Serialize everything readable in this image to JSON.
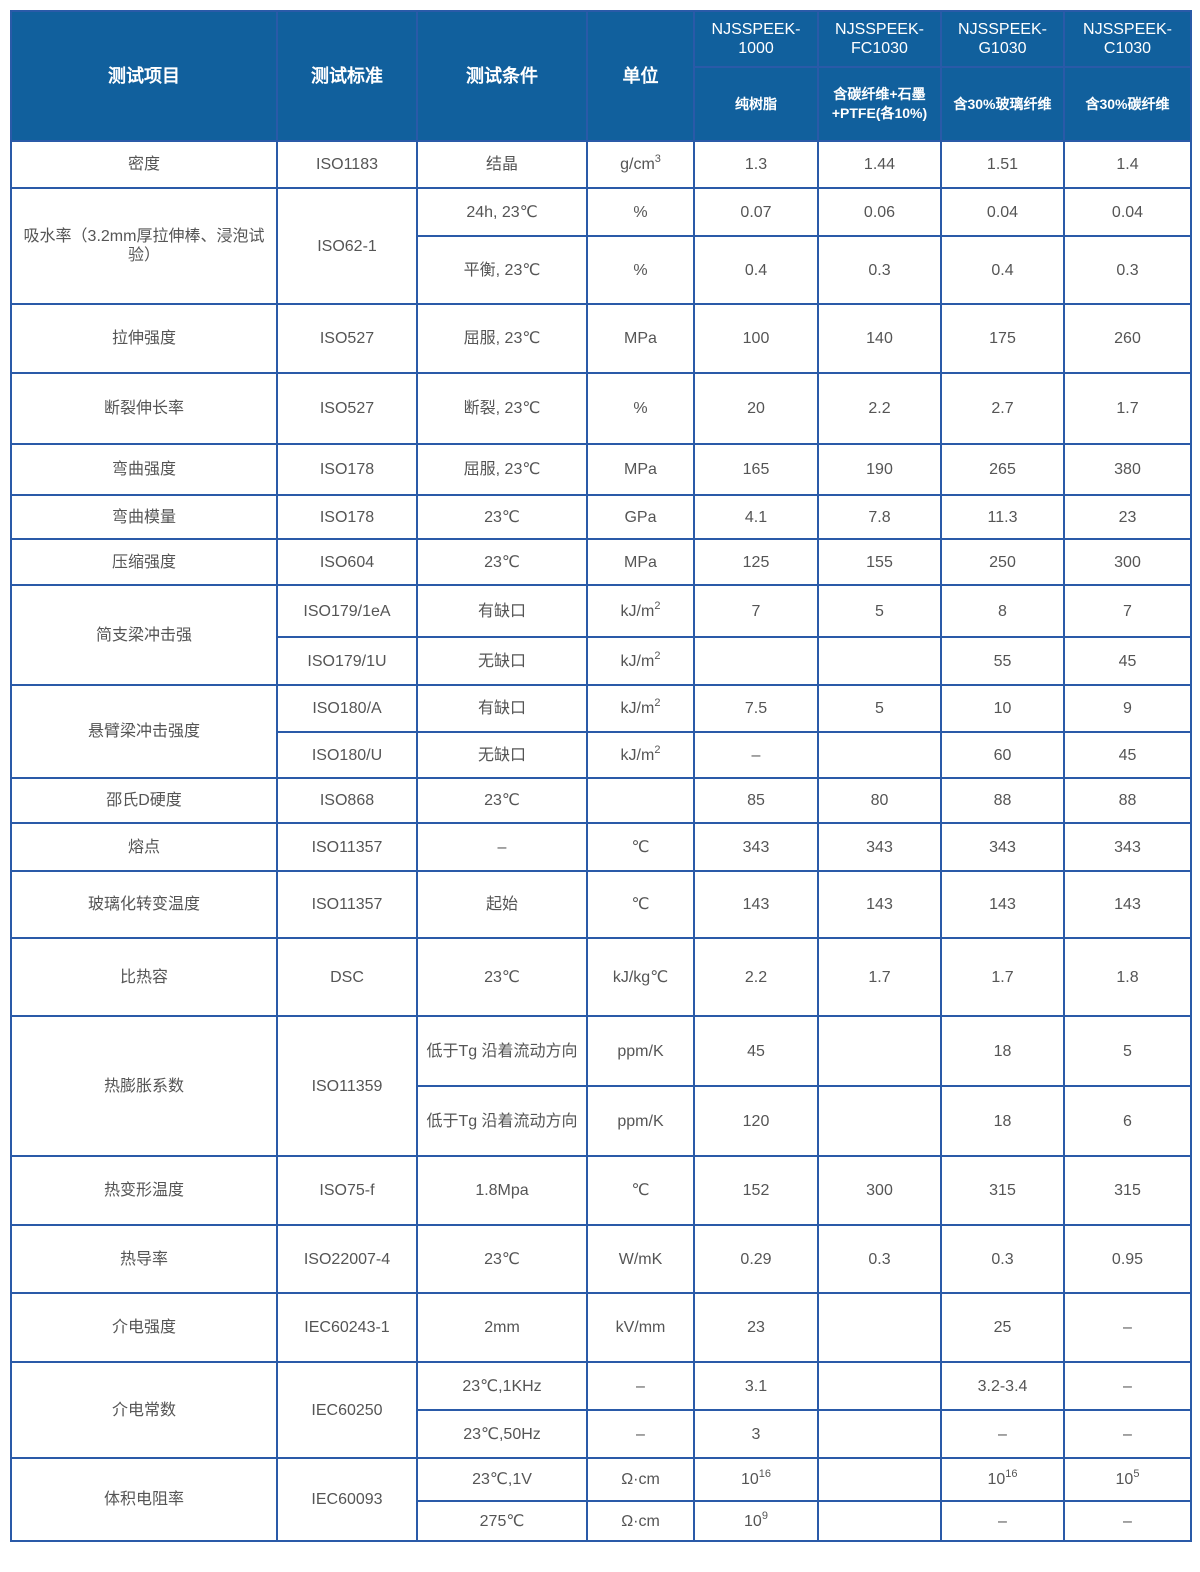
{
  "colors": {
    "header_bg": "#11609d",
    "border": "#2a5aa8",
    "text": "#555555"
  },
  "header": {
    "item": "测试项目",
    "standard": "测试标准",
    "condition": "测试条件",
    "unit": "单位",
    "grades": [
      {
        "name": "NJSSPEEK-1000",
        "desc": "纯树脂"
      },
      {
        "name": "NJSSPEEK-FC1030",
        "desc": "含碳纤维+石墨+PTFE(各10%)"
      },
      {
        "name": "NJSSPEEK-G1030",
        "desc": "含30%玻璃纤维"
      },
      {
        "name": "NJSSPEEK-C1030",
        "desc": "含30%碳纤维"
      }
    ]
  },
  "rows": [
    {
      "item": "密度",
      "standard": "ISO1183",
      "sub": [
        {
          "cond": "结晶",
          "unit": {
            "b": "g/cm",
            "s": "3"
          },
          "v": [
            "1.3",
            "1.44",
            "1.51",
            "1.4"
          ]
        }
      ]
    },
    {
      "item": "吸水率（3.2mm厚拉伸棒、浸泡试验）",
      "standard": "ISO62-1",
      "sub": [
        {
          "cond": "24h, 23℃",
          "unit": "%",
          "v": [
            "0.07",
            "0.06",
            "0.04",
            "0.04"
          ]
        },
        {
          "cond": "平衡, 23℃",
          "unit": "%",
          "v": [
            "0.4",
            "0.3",
            "0.4",
            "0.3"
          ]
        }
      ]
    },
    {
      "item": "拉伸强度",
      "standard": "ISO527",
      "sub": [
        {
          "cond": "屈服, 23℃",
          "unit": "MPa",
          "v": [
            "100",
            "140",
            "175",
            "260"
          ]
        }
      ]
    },
    {
      "item": "断裂伸长率",
      "standard": "ISO527",
      "sub": [
        {
          "cond": "断裂, 23℃",
          "unit": "%",
          "v": [
            "20",
            "2.2",
            "2.7",
            "1.7"
          ]
        }
      ]
    },
    {
      "item": "弯曲强度",
      "standard": "ISO178",
      "sub": [
        {
          "cond": "屈服, 23℃",
          "unit": "MPa",
          "v": [
            "165",
            "190",
            "265",
            "380"
          ]
        }
      ]
    },
    {
      "item": "弯曲模量",
      "standard": "ISO178",
      "sub": [
        {
          "cond": "23℃",
          "unit": "GPa",
          "v": [
            "4.1",
            "7.8",
            "11.3",
            "23"
          ]
        }
      ]
    },
    {
      "item": "压缩强度",
      "standard": "ISO604",
      "sub": [
        {
          "cond": "23℃",
          "unit": "MPa",
          "v": [
            "125",
            "155",
            "250",
            "300"
          ]
        }
      ]
    },
    {
      "item": "简支梁冲击强",
      "sub": [
        {
          "std": "ISO179/1eA",
          "cond": "有缺口",
          "unit": {
            "b": "kJ/m",
            "s": "2"
          },
          "v": [
            "7",
            "5",
            "8",
            "7"
          ]
        },
        {
          "std": "ISO179/1U",
          "cond": "无缺口",
          "unit": {
            "b": "kJ/m",
            "s": "2"
          },
          "v": [
            "",
            "",
            "55",
            "45"
          ]
        }
      ]
    },
    {
      "item": "悬臂梁冲击强度",
      "sub": [
        {
          "std": "ISO180/A",
          "cond": "有缺口",
          "unit": {
            "b": "kJ/m",
            "s": "2"
          },
          "v": [
            "7.5",
            "5",
            "10",
            "9"
          ]
        },
        {
          "std": "ISO180/U",
          "cond": "无缺口",
          "unit": {
            "b": "kJ/m",
            "s": "2"
          },
          "v": [
            "–",
            "",
            "60",
            "45"
          ]
        }
      ]
    },
    {
      "item": "邵氏D硬度",
      "standard": "ISO868",
      "sub": [
        {
          "cond": "23℃",
          "unit": "",
          "v": [
            "85",
            "80",
            "88",
            "88"
          ]
        }
      ]
    },
    {
      "item": "熔点",
      "standard": "ISO11357",
      "sub": [
        {
          "cond": "–",
          "unit": "℃",
          "v": [
            "343",
            "343",
            "343",
            "343"
          ]
        }
      ]
    },
    {
      "item": "玻璃化转变温度",
      "standard": "ISO11357",
      "sub": [
        {
          "cond": "起始",
          "unit": "℃",
          "v": [
            "143",
            "143",
            "143",
            "143"
          ]
        }
      ]
    },
    {
      "item": "比热容",
      "standard": "DSC",
      "sub": [
        {
          "cond": "23℃",
          "unit": "kJ/kg℃",
          "v": [
            "2.2",
            "1.7",
            "1.7",
            "1.8"
          ]
        }
      ]
    },
    {
      "item": "热膨胀系数",
      "standard": "ISO11359",
      "sub": [
        {
          "cond": "低于Tg 沿着流动方向",
          "unit": "ppm/K",
          "v": [
            "45",
            "",
            "18",
            "5"
          ]
        },
        {
          "cond": "低于Tg 沿着流动方向",
          "unit": "ppm/K",
          "v": [
            "120",
            "",
            "18",
            "6"
          ]
        }
      ]
    },
    {
      "item": "热变形温度",
      "standard": "ISO75-f",
      "sub": [
        {
          "cond": "1.8Mpa",
          "unit": "℃",
          "v": [
            "152",
            "300",
            "315",
            "315"
          ]
        }
      ]
    },
    {
      "item": "热导率",
      "standard": "ISO22007-4",
      "sub": [
        {
          "cond": "23℃",
          "unit": "W/mK",
          "v": [
            "0.29",
            "0.3",
            "0.3",
            "0.95"
          ]
        }
      ]
    },
    {
      "item": "介电强度",
      "standard": "IEC60243-1",
      "sub": [
        {
          "cond": "2mm",
          "unit": "kV/mm",
          "v": [
            "23",
            "",
            "25",
            "–"
          ]
        }
      ]
    },
    {
      "item": "介电常数",
      "standard": "IEC60250",
      "sub": [
        {
          "cond": "23℃,1KHz",
          "unit": "–",
          "v": [
            "3.1",
            "",
            "3.2-3.4",
            "–"
          ]
        },
        {
          "cond": "23℃,50Hz",
          "unit": "–",
          "v": [
            "3",
            "",
            "–",
            "–"
          ]
        }
      ]
    },
    {
      "item": "体积电阻率",
      "standard": "IEC60093",
      "sub": [
        {
          "cond": "23℃,1V",
          "unit": "Ω·cm",
          "v": [
            {
              "b": "10",
              "s": "16"
            },
            "",
            {
              "b": "10",
              "s": "16"
            },
            {
              "b": "10",
              "s": "5"
            }
          ]
        },
        {
          "cond": "275℃",
          "unit": "Ω·cm",
          "v": [
            {
              "b": "10",
              "s": "9"
            },
            "",
            "–",
            "–"
          ]
        }
      ]
    }
  ]
}
